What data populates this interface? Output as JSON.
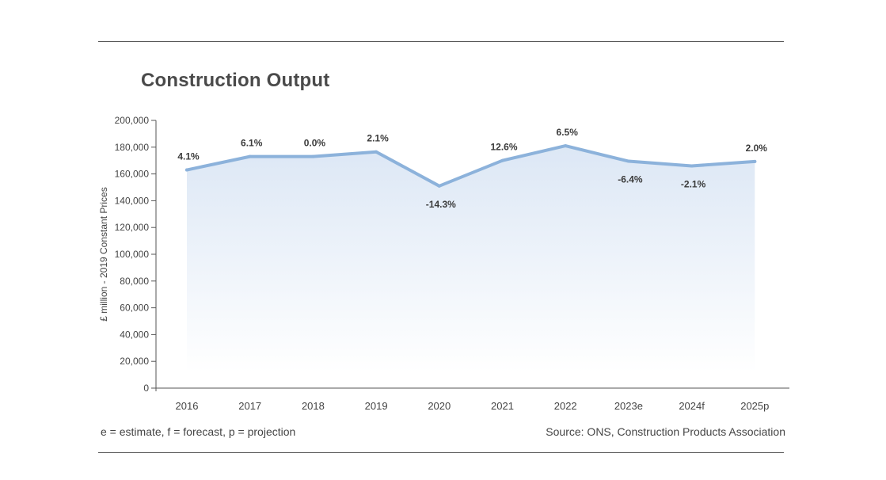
{
  "title": "Construction Output",
  "footnote": "e = estimate, f = forecast, p = projection",
  "source": "Source: ONS, Construction Products Association",
  "colors": {
    "line": "#8cb2db",
    "area_top": "#dce7f5",
    "area_bottom": "#ffffff",
    "axis": "#555555",
    "text": "#444444",
    "rule": "#555555"
  },
  "chart_data": {
    "type": "area",
    "title": "Construction Output",
    "xlabel": "",
    "ylabel": "£ million - 2019 Constant Prices",
    "ylim": [
      0,
      200000
    ],
    "yticks": [
      0,
      20000,
      40000,
      60000,
      80000,
      100000,
      120000,
      140000,
      160000,
      180000,
      200000
    ],
    "ytick_labels": [
      "0",
      "20,000",
      "40,000",
      "60,000",
      "80,000",
      "100,000",
      "120,000",
      "140,000",
      "160,000",
      "180,000",
      "200,000"
    ],
    "categories": [
      "2016",
      "2017",
      "2018",
      "2019",
      "2020",
      "2021",
      "2022",
      "2023e",
      "2024f",
      "2025p"
    ],
    "values": [
      163000,
      173000,
      173000,
      176500,
      151000,
      170000,
      181000,
      169500,
      166000,
      169300
    ],
    "data_labels": [
      "4.1%",
      "6.1%",
      "0.0%",
      "2.1%",
      "-14.3%",
      "12.6%",
      "6.5%",
      "-6.4%",
      "-2.1%",
      "2.0%"
    ],
    "label_positions": [
      "above",
      "above",
      "above",
      "above",
      "below",
      "above",
      "above",
      "below",
      "below",
      "above"
    ],
    "grid": false,
    "legend": "none"
  }
}
